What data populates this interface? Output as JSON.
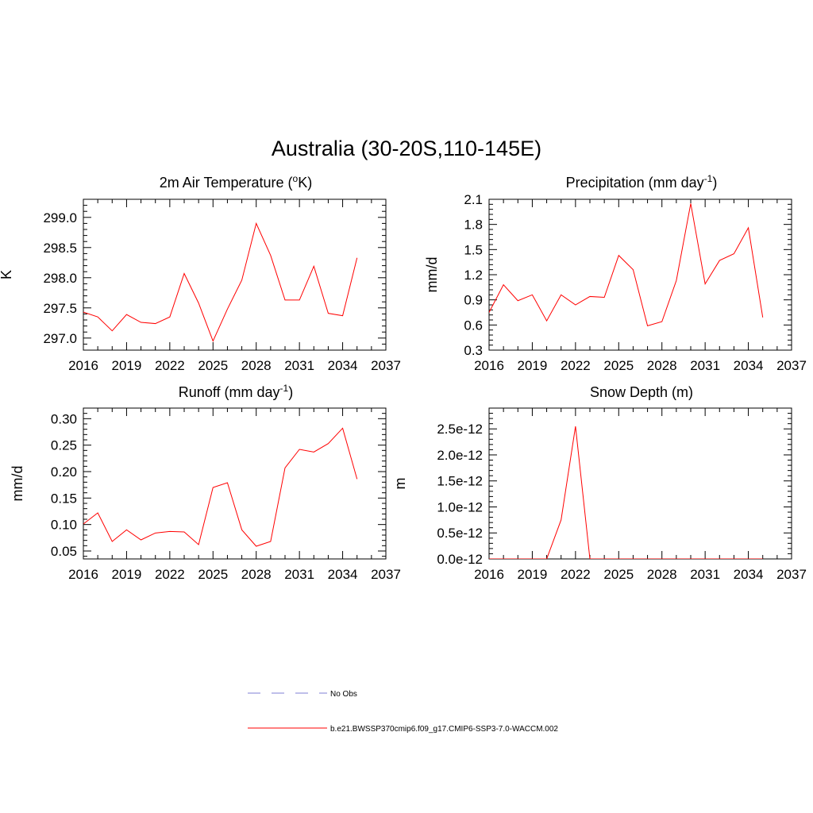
{
  "figure": {
    "title": "Australia (30-20S,110-145E)"
  },
  "colors": {
    "series": "#ff0000",
    "obs": "#9999dd",
    "axis": "#000000"
  },
  "legend": {
    "position": "bottom-center",
    "entries": [
      {
        "label": "No Obs",
        "style": "dashed",
        "color": "#9999dd"
      },
      {
        "label": "b.e21.BWSSP370cmip6.f09_g17.CMIP6-SSP3-7.0-WACCM.002",
        "style": "solid",
        "color": "#ff0000"
      }
    ]
  },
  "chart_data": [
    {
      "type": "line",
      "title": "2m Air Temperature (",
      "title_sup": "o",
      "title_after": "K)",
      "xlabel": "",
      "ylabel": "K",
      "xlim": [
        2016,
        2037
      ],
      "ylim": [
        296.8,
        299.3
      ],
      "xticks": [
        2016,
        2019,
        2022,
        2025,
        2028,
        2031,
        2034,
        2037
      ],
      "yticks": [
        297.0,
        297.5,
        298.0,
        298.5,
        299.0
      ],
      "ytick_labels": [
        "297.0",
        "297.5",
        "298.0",
        "298.5",
        "299.0"
      ],
      "grid": false,
      "x": [
        2016,
        2017,
        2018,
        2019,
        2020,
        2021,
        2022,
        2023,
        2024,
        2025,
        2026,
        2027,
        2028,
        2029,
        2030,
        2031,
        2032,
        2033,
        2034,
        2035
      ],
      "series": [
        {
          "values": [
            297.43,
            297.35,
            297.12,
            297.39,
            297.26,
            297.24,
            297.35,
            298.07,
            297.58,
            296.95,
            297.48,
            297.96,
            298.9,
            298.37,
            297.63,
            297.63,
            298.19,
            297.41,
            297.37,
            298.33
          ]
        }
      ]
    },
    {
      "type": "line",
      "title": "Precipitation (mm day",
      "title_sup": "-1",
      "title_after": ")",
      "xlabel": "",
      "ylabel": "mm/d",
      "xlim": [
        2016,
        2037
      ],
      "ylim": [
        0.3,
        2.1
      ],
      "xticks": [
        2016,
        2019,
        2022,
        2025,
        2028,
        2031,
        2034,
        2037
      ],
      "yticks": [
        0.3,
        0.6,
        0.9,
        1.2,
        1.5,
        1.8,
        2.1
      ],
      "ytick_labels": [
        "0.3",
        "0.6",
        "0.9",
        "1.2",
        "1.5",
        "1.8",
        "2.1"
      ],
      "grid": false,
      "x": [
        2016,
        2017,
        2018,
        2019,
        2020,
        2021,
        2022,
        2023,
        2024,
        2025,
        2026,
        2027,
        2028,
        2029,
        2030,
        2031,
        2032,
        2033,
        2034,
        2035
      ],
      "series": [
        {
          "values": [
            0.75,
            1.08,
            0.89,
            0.96,
            0.65,
            0.96,
            0.84,
            0.94,
            0.93,
            1.43,
            1.26,
            0.59,
            0.64,
            1.13,
            2.05,
            1.09,
            1.37,
            1.45,
            1.76,
            0.69
          ]
        }
      ]
    },
    {
      "type": "line",
      "title": "Runoff (mm day",
      "title_sup": "-1",
      "title_after": ")",
      "xlabel": "",
      "ylabel": "mm/d",
      "xlim": [
        2016,
        2037
      ],
      "ylim": [
        0.035,
        0.32
      ],
      "xticks": [
        2016,
        2019,
        2022,
        2025,
        2028,
        2031,
        2034,
        2037
      ],
      "yticks": [
        0.05,
        0.1,
        0.15,
        0.2,
        0.25,
        0.3
      ],
      "ytick_labels": [
        "0.05",
        "0.10",
        "0.15",
        "0.20",
        "0.25",
        "0.30"
      ],
      "grid": false,
      "x": [
        2016,
        2017,
        2018,
        2019,
        2020,
        2021,
        2022,
        2023,
        2024,
        2025,
        2026,
        2027,
        2028,
        2029,
        2030,
        2031,
        2032,
        2033,
        2034,
        2035
      ],
      "series": [
        {
          "values": [
            0.101,
            0.122,
            0.068,
            0.09,
            0.071,
            0.084,
            0.087,
            0.086,
            0.062,
            0.17,
            0.179,
            0.09,
            0.059,
            0.068,
            0.207,
            0.242,
            0.237,
            0.253,
            0.282,
            0.186
          ]
        }
      ]
    },
    {
      "type": "line",
      "title": "Snow Depth (m)",
      "title_sup": "",
      "title_after": "",
      "xlabel": "",
      "ylabel": "m",
      "xlim": [
        2016,
        2037
      ],
      "ylim": [
        0,
        2.9e-12
      ],
      "xticks": [
        2016,
        2019,
        2022,
        2025,
        2028,
        2031,
        2034,
        2037
      ],
      "yticks": [
        0,
        5e-13,
        1e-12,
        1.5e-12,
        2e-12,
        2.5e-12
      ],
      "ytick_labels": [
        "0.0e-12",
        "0.5e-12",
        "1.0e-12",
        "1.5e-12",
        "2.0e-12",
        "2.5e-12"
      ],
      "grid": false,
      "x": [
        2016,
        2017,
        2018,
        2019,
        2020,
        2021,
        2022,
        2023,
        2024,
        2025,
        2026,
        2027,
        2028,
        2029,
        2030,
        2031,
        2032,
        2033,
        2034,
        2035
      ],
      "series": [
        {
          "values": [
            0,
            0,
            0,
            0,
            0,
            7.5e-13,
            2.55e-12,
            0,
            0,
            0,
            0,
            0,
            0,
            0,
            0,
            0,
            0,
            0,
            0,
            0
          ]
        }
      ]
    }
  ]
}
